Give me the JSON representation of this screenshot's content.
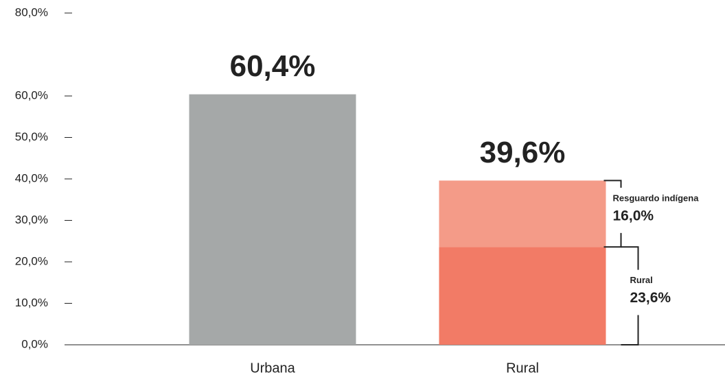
{
  "chart_data": {
    "type": "stacked-bar",
    "categories": [
      "Urbana",
      "Rural"
    ],
    "series": [
      {
        "name": "Urbana",
        "color": "#a5a8a8",
        "values": [
          60.4,
          null
        ]
      },
      {
        "name": "Rural",
        "color": "#f27b66",
        "values": [
          null,
          23.6
        ],
        "value_labels": [
          null,
          "23,6%"
        ]
      },
      {
        "name": "Resguardo indígena",
        "color": "#f49b88",
        "values": [
          null,
          16.0
        ],
        "value_labels": [
          null,
          "16,0%"
        ]
      }
    ],
    "totals": [
      60.4,
      39.6
    ],
    "total_labels": [
      "60,4%",
      "39,6%"
    ],
    "ylim": [
      0,
      80
    ],
    "yticks": [
      {
        "value": 0,
        "label": "0,0%"
      },
      {
        "value": 10,
        "label": "10,0%"
      },
      {
        "value": 20,
        "label": "20,0%"
      },
      {
        "value": 30,
        "label": "30,0%"
      },
      {
        "value": 40,
        "label": "40,0%"
      },
      {
        "value": 50,
        "label": "50,0%"
      },
      {
        "value": 60,
        "label": "60,0%"
      },
      {
        "value": 80,
        "label": "80,0%"
      }
    ]
  }
}
